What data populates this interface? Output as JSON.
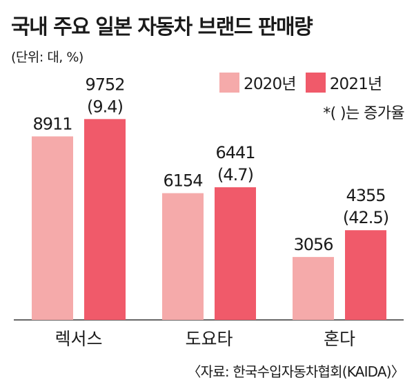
{
  "title": "국내 주요 일본 자동차 브랜드 판매량",
  "unit": "(단위: 대, %)",
  "note": "*(  )는 증가율",
  "source": "〈자료: 한국수입자동차협회(KAIDA)〉",
  "colors": {
    "y2020": "#f5aaaa",
    "y2021": "#f05a6a"
  },
  "chart_data": {
    "type": "bar",
    "categories": [
      "렉서스",
      "도요타",
      "혼다"
    ],
    "series": [
      {
        "name": "2020년",
        "values": [
          8911,
          6154,
          3056
        ]
      },
      {
        "name": "2021년",
        "values": [
          9752,
          6441,
          4355
        ]
      }
    ],
    "growth_labels": [
      "(9.4)",
      "(4.7)",
      "(42.5)"
    ],
    "ylim": [
      0,
      10300
    ],
    "grid": false,
    "legend": "top-right"
  }
}
